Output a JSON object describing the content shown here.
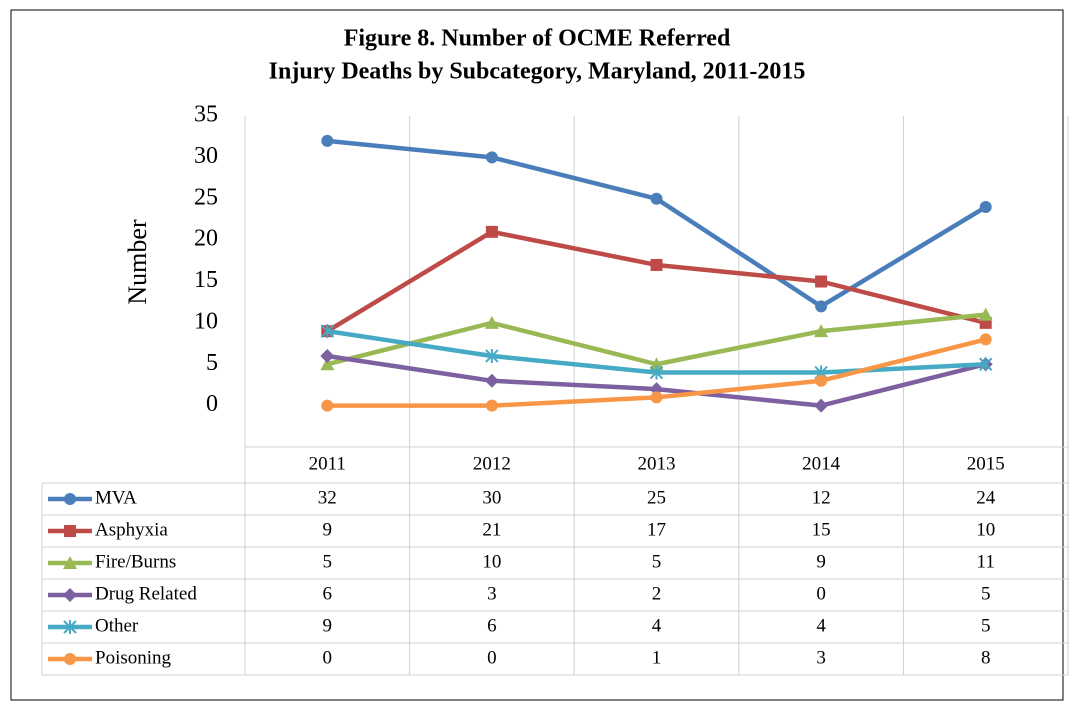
{
  "chart_data": {
    "type": "line",
    "title": [
      "Figure 8. Number of OCME Referred",
      "Injury Deaths by Subcategory, Maryland, 2011-2015"
    ],
    "y_label": "Number",
    "categories": [
      "2011",
      "2012",
      "2013",
      "2014",
      "2015"
    ],
    "ylim": [
      -5,
      35
    ],
    "yticks": [
      0,
      5,
      10,
      15,
      20,
      25,
      30,
      35
    ],
    "data_table": true,
    "series": [
      {
        "name": "MVA",
        "color": "#4a7ebb",
        "marker": "circle",
        "values": [
          32,
          30,
          25,
          12,
          24
        ]
      },
      {
        "name": "Asphyxia",
        "color": "#be4b48",
        "marker": "square",
        "values": [
          9,
          21,
          17,
          15,
          10
        ]
      },
      {
        "name": "Fire/Burns",
        "color": "#98b954",
        "marker": "triangle",
        "values": [
          5,
          10,
          5,
          9,
          11
        ]
      },
      {
        "name": "Drug Related",
        "color": "#7d60a0",
        "marker": "diamond",
        "values": [
          6,
          3,
          2,
          0,
          5
        ]
      },
      {
        "name": "Other",
        "color": "#46aac5",
        "marker": "star",
        "values": [
          9,
          6,
          4,
          4,
          5
        ]
      },
      {
        "name": "Poisoning",
        "color": "#f79646",
        "marker": "circle",
        "values": [
          0,
          0,
          1,
          3,
          8
        ]
      }
    ]
  }
}
